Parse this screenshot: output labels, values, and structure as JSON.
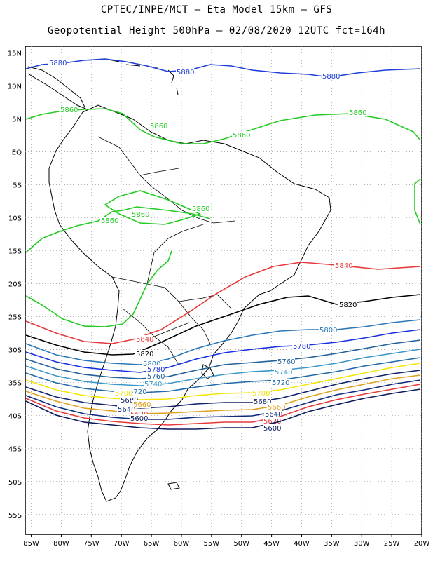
{
  "header": {
    "line1": "CPTEC/INPE/MCT –  Eta Model 15km – GFS",
    "line2": "Geopotential Height 500hPa – 02/08/2020 12UTC fct=164h"
  },
  "axes": {
    "lon_labels": [
      "85W",
      "80W",
      "75W",
      "70W",
      "65W",
      "60W",
      "55W",
      "50W",
      "45W",
      "40W",
      "35W",
      "30W",
      "25W",
      "20W"
    ],
    "lat_labels": [
      "15N",
      "10N",
      "5N",
      "EQ",
      "5S",
      "10S",
      "15S",
      "20S",
      "25S",
      "30S",
      "35S",
      "40S",
      "45S",
      "50S",
      "55S"
    ],
    "lon_range": [
      -86,
      -20
    ],
    "lat_range": [
      -58,
      16
    ],
    "grid": "dotted"
  },
  "contours": [
    {
      "level": 5880,
      "color": "#1f3fd6",
      "labels": [
        "5880",
        "5880",
        "5880"
      ]
    },
    {
      "level": 5860,
      "color": "#22cc22",
      "labels": [
        "5860",
        "5860",
        "5860",
        "5860",
        "5860",
        "5860",
        "5860"
      ]
    },
    {
      "level": 5840,
      "color": "#e8393a",
      "labels": [
        "5840",
        "5840"
      ]
    },
    {
      "level": 5820,
      "color": "#000000",
      "labels": [
        "5820",
        "5820"
      ]
    },
    {
      "level": 5800,
      "color": "#2a78b8",
      "labels": [
        "5800",
        "5800"
      ]
    },
    {
      "level": 5780,
      "color": "#1730e0",
      "labels": [
        "5780",
        "5780"
      ]
    },
    {
      "level": 5760,
      "color": "#1f5f9a",
      "labels": [
        "5760",
        "5760"
      ]
    },
    {
      "level": 5740,
      "color": "#3a98c8",
      "labels": [
        "5740",
        "5740"
      ]
    },
    {
      "level": 5720,
      "color": "#1f6aa8",
      "labels": [
        "5720",
        "5720"
      ]
    },
    {
      "level": 5700,
      "color": "#f2e600",
      "labels": [
        "5700",
        "5700"
      ]
    },
    {
      "level": 5680,
      "color": "#10206a",
      "labels": [
        "5680",
        "5680"
      ]
    },
    {
      "level": 5660,
      "color": "#e0a020",
      "labels": [
        "5660",
        "5660"
      ]
    },
    {
      "level": 5640,
      "color": "#0f2a80",
      "labels": [
        "5640",
        "5640"
      ]
    },
    {
      "level": 5620,
      "color": "#e8393a",
      "labels": [
        "5620",
        "5620"
      ]
    },
    {
      "level": 5600,
      "color": "#0b1a5c",
      "labels": [
        "5600",
        "5600"
      ]
    }
  ]
}
